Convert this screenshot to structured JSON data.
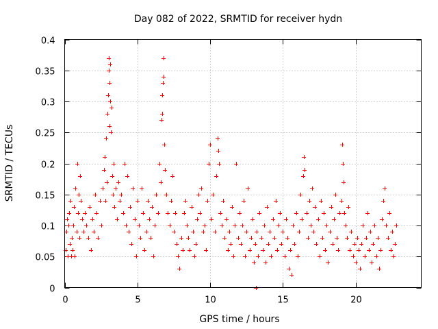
{
  "chart_data": {
    "type": "scatter",
    "title": "Day 082 of 2022, SRMTID for receiver hydn",
    "xlabel": "GPS time / hours",
    "ylabel": "SRMTID / TECUs",
    "xlim": [
      0,
      24.5
    ],
    "ylim": [
      0,
      0.4
    ],
    "xticks": [
      0,
      5,
      10,
      15,
      20
    ],
    "yticks": [
      0,
      0.05,
      0.1,
      0.15,
      0.2,
      0.25,
      0.3,
      0.35,
      0.4
    ],
    "xtick_labels": [
      "0",
      "5",
      "10",
      "15",
      "20"
    ],
    "ytick_labels": [
      "0",
      "0.05",
      "0.1",
      "0.15",
      "0.2",
      "0.25",
      "0.3",
      "0.35",
      "0.4"
    ],
    "grid": true,
    "marker": "+",
    "marker_color": "#ff0000",
    "series": [
      {
        "name": "hydn",
        "points": [
          [
            0.05,
            0.06
          ],
          [
            0.1,
            0.09
          ],
          [
            0.15,
            0.11
          ],
          [
            0.2,
            0.05
          ],
          [
            0.25,
            0.1
          ],
          [
            0.3,
            0.12
          ],
          [
            0.35,
            0.07
          ],
          [
            0.4,
            0.14
          ],
          [
            0.45,
            0.05
          ],
          [
            0.5,
            0.08
          ],
          [
            0.55,
            0.06
          ],
          [
            0.6,
            0.1
          ],
          [
            0.65,
            0.13
          ],
          [
            0.7,
            0.05
          ],
          [
            0.75,
            0.16
          ],
          [
            0.8,
            0.09
          ],
          [
            0.85,
            0.2
          ],
          [
            0.9,
            0.12
          ],
          [
            0.95,
            0.15
          ],
          [
            1.0,
            0.08
          ],
          [
            1.05,
            0.18
          ],
          [
            1.1,
            0.14
          ],
          [
            1.2,
            0.11
          ],
          [
            1.3,
            0.09
          ],
          [
            1.4,
            0.12
          ],
          [
            1.5,
            0.1
          ],
          [
            1.6,
            0.08
          ],
          [
            1.7,
            0.13
          ],
          [
            1.8,
            0.06
          ],
          [
            1.9,
            0.11
          ],
          [
            2.0,
            0.09
          ],
          [
            2.1,
            0.15
          ],
          [
            2.2,
            0.12
          ],
          [
            2.3,
            0.08
          ],
          [
            2.4,
            0.14
          ],
          [
            2.5,
            0.1
          ],
          [
            2.6,
            0.16
          ],
          [
            2.7,
            0.19
          ],
          [
            2.75,
            0.21
          ],
          [
            2.8,
            0.14
          ],
          [
            2.85,
            0.24
          ],
          [
            2.9,
            0.17
          ],
          [
            2.95,
            0.28
          ],
          [
            3.0,
            0.31
          ],
          [
            3.02,
            0.35
          ],
          [
            3.05,
            0.37
          ],
          [
            3.08,
            0.33
          ],
          [
            3.1,
            0.26
          ],
          [
            3.12,
            0.36
          ],
          [
            3.15,
            0.3
          ],
          [
            3.18,
            0.25
          ],
          [
            3.2,
            0.29
          ],
          [
            3.25,
            0.18
          ],
          [
            3.3,
            0.15
          ],
          [
            3.35,
            0.2
          ],
          [
            3.4,
            0.13
          ],
          [
            3.5,
            0.16
          ],
          [
            3.6,
            0.11
          ],
          [
            3.7,
            0.17
          ],
          [
            3.8,
            0.14
          ],
          [
            3.9,
            0.15
          ],
          [
            4.0,
            0.12
          ],
          [
            4.1,
            0.2
          ],
          [
            4.2,
            0.1
          ],
          [
            4.3,
            0.18
          ],
          [
            4.4,
            0.09
          ],
          [
            4.5,
            0.13
          ],
          [
            4.6,
            0.07
          ],
          [
            4.7,
            0.16
          ],
          [
            4.8,
            0.11
          ],
          [
            4.9,
            0.05
          ],
          [
            5.0,
            0.14
          ],
          [
            5.1,
            0.1
          ],
          [
            5.2,
            0.08
          ],
          [
            5.3,
            0.16
          ],
          [
            5.4,
            0.12
          ],
          [
            5.5,
            0.06
          ],
          [
            5.6,
            0.09
          ],
          [
            5.7,
            0.14
          ],
          [
            5.8,
            0.11
          ],
          [
            5.9,
            0.08
          ],
          [
            6.0,
            0.13
          ],
          [
            6.1,
            0.05
          ],
          [
            6.2,
            0.1
          ],
          [
            6.3,
            0.15
          ],
          [
            6.4,
            0.12
          ],
          [
            6.5,
            0.2
          ],
          [
            6.6,
            0.17
          ],
          [
            6.65,
            0.27
          ],
          [
            6.7,
            0.28
          ],
          [
            6.72,
            0.31
          ],
          [
            6.75,
            0.33
          ],
          [
            6.78,
            0.34
          ],
          [
            6.8,
            0.37
          ],
          [
            6.85,
            0.23
          ],
          [
            6.9,
            0.19
          ],
          [
            7.0,
            0.15
          ],
          [
            7.1,
            0.12
          ],
          [
            7.2,
            0.1
          ],
          [
            7.3,
            0.14
          ],
          [
            7.4,
            0.18
          ],
          [
            7.5,
            0.09
          ],
          [
            7.6,
            0.12
          ],
          [
            7.7,
            0.07
          ],
          [
            7.8,
            0.05
          ],
          [
            7.9,
            0.03
          ],
          [
            8.0,
            0.08
          ],
          [
            8.1,
            0.06
          ],
          [
            8.2,
            0.12
          ],
          [
            8.3,
            0.14
          ],
          [
            8.4,
            0.1
          ],
          [
            8.5,
            0.08
          ],
          [
            8.6,
            0.06
          ],
          [
            8.7,
            0.13
          ],
          [
            8.8,
            0.09
          ],
          [
            8.9,
            0.05
          ],
          [
            9.0,
            0.07
          ],
          [
            9.1,
            0.11
          ],
          [
            9.2,
            0.15
          ],
          [
            9.3,
            0.12
          ],
          [
            9.4,
            0.16
          ],
          [
            9.5,
            0.09
          ],
          [
            9.6,
            0.1
          ],
          [
            9.7,
            0.06
          ],
          [
            9.8,
            0.14
          ],
          [
            9.9,
            0.2
          ],
          [
            10.0,
            0.23
          ],
          [
            10.1,
            0.11
          ],
          [
            10.2,
            0.15
          ],
          [
            10.3,
            0.09
          ],
          [
            10.4,
            0.18
          ],
          [
            10.5,
            0.24
          ],
          [
            10.55,
            0.22
          ],
          [
            10.6,
            0.2
          ],
          [
            10.7,
            0.12
          ],
          [
            10.8,
            0.1
          ],
          [
            10.9,
            0.14
          ],
          [
            11.0,
            0.08
          ],
          [
            11.1,
            0.11
          ],
          [
            11.2,
            0.06
          ],
          [
            11.3,
            0.09
          ],
          [
            11.4,
            0.07
          ],
          [
            11.5,
            0.13
          ],
          [
            11.6,
            0.05
          ],
          [
            11.7,
            0.1
          ],
          [
            11.8,
            0.2
          ],
          [
            11.9,
            0.08
          ],
          [
            12.0,
            0.12
          ],
          [
            12.1,
            0.07
          ],
          [
            12.2,
            0.1
          ],
          [
            12.3,
            0.14
          ],
          [
            12.4,
            0.05
          ],
          [
            12.5,
            0.09
          ],
          [
            12.6,
            0.16
          ],
          [
            12.7,
            0.06
          ],
          [
            12.8,
            0.08
          ],
          [
            12.9,
            0.11
          ],
          [
            13.0,
            0.04
          ],
          [
            13.1,
            0.07
          ],
          [
            13.15,
            0.0
          ],
          [
            13.2,
            0.09
          ],
          [
            13.3,
            0.05
          ],
          [
            13.4,
            0.12
          ],
          [
            13.5,
            0.08
          ],
          [
            13.6,
            0.06
          ],
          [
            13.7,
            0.1
          ],
          [
            13.8,
            0.04
          ],
          [
            13.9,
            0.13
          ],
          [
            14.0,
            0.07
          ],
          [
            14.1,
            0.09
          ],
          [
            14.2,
            0.05
          ],
          [
            14.3,
            0.11
          ],
          [
            14.4,
            0.08
          ],
          [
            14.5,
            0.14
          ],
          [
            14.6,
            0.06
          ],
          [
            14.7,
            0.1
          ],
          [
            14.8,
            0.12
          ],
          [
            14.9,
            0.07
          ],
          [
            15.0,
            0.09
          ],
          [
            15.1,
            0.05
          ],
          [
            15.2,
            0.11
          ],
          [
            15.3,
            0.08
          ],
          [
            15.4,
            0.03
          ],
          [
            15.5,
            0.06
          ],
          [
            15.6,
            0.02
          ],
          [
            15.7,
            0.1
          ],
          [
            15.8,
            0.07
          ],
          [
            15.9,
            0.12
          ],
          [
            16.0,
            0.05
          ],
          [
            16.1,
            0.09
          ],
          [
            16.2,
            0.15
          ],
          [
            16.3,
            0.11
          ],
          [
            16.4,
            0.18
          ],
          [
            16.45,
            0.21
          ],
          [
            16.5,
            0.19
          ],
          [
            16.6,
            0.12
          ],
          [
            16.7,
            0.08
          ],
          [
            16.8,
            0.14
          ],
          [
            16.9,
            0.1
          ],
          [
            17.0,
            0.16
          ],
          [
            17.1,
            0.09
          ],
          [
            17.2,
            0.13
          ],
          [
            17.3,
            0.07
          ],
          [
            17.4,
            0.11
          ],
          [
            17.5,
            0.05
          ],
          [
            17.6,
            0.14
          ],
          [
            17.7,
            0.08
          ],
          [
            17.8,
            0.12
          ],
          [
            17.9,
            0.06
          ],
          [
            18.0,
            0.1
          ],
          [
            18.1,
            0.04
          ],
          [
            18.2,
            0.09
          ],
          [
            18.3,
            0.13
          ],
          [
            18.4,
            0.07
          ],
          [
            18.5,
            0.11
          ],
          [
            18.6,
            0.15
          ],
          [
            18.7,
            0.08
          ],
          [
            18.8,
            0.06
          ],
          [
            18.9,
            0.12
          ],
          [
            19.0,
            0.14
          ],
          [
            19.05,
            0.23
          ],
          [
            19.1,
            0.2
          ],
          [
            19.15,
            0.17
          ],
          [
            19.2,
            0.12
          ],
          [
            19.3,
            0.1
          ],
          [
            19.4,
            0.08
          ],
          [
            19.5,
            0.13
          ],
          [
            19.6,
            0.06
          ],
          [
            19.7,
            0.09
          ],
          [
            19.8,
            0.05
          ],
          [
            19.9,
            0.07
          ],
          [
            20.0,
            0.04
          ],
          [
            20.1,
            0.08
          ],
          [
            20.2,
            0.06
          ],
          [
            20.3,
            0.03
          ],
          [
            20.4,
            0.07
          ],
          [
            20.5,
            0.1
          ],
          [
            20.6,
            0.05
          ],
          [
            20.7,
            0.08
          ],
          [
            20.8,
            0.12
          ],
          [
            20.9,
            0.06
          ],
          [
            21.0,
            0.09
          ],
          [
            21.1,
            0.04
          ],
          [
            21.2,
            0.07
          ],
          [
            21.3,
            0.1
          ],
          [
            21.4,
            0.05
          ],
          [
            21.5,
            0.08
          ],
          [
            21.6,
            0.03
          ],
          [
            21.7,
            0.06
          ],
          [
            21.8,
            0.11
          ],
          [
            21.9,
            0.14
          ],
          [
            22.0,
            0.16
          ],
          [
            22.1,
            0.1
          ],
          [
            22.2,
            0.08
          ],
          [
            22.3,
            0.12
          ],
          [
            22.4,
            0.06
          ],
          [
            22.5,
            0.09
          ],
          [
            22.6,
            0.05
          ],
          [
            22.7,
            0.07
          ],
          [
            22.8,
            0.1
          ]
        ]
      }
    ]
  }
}
